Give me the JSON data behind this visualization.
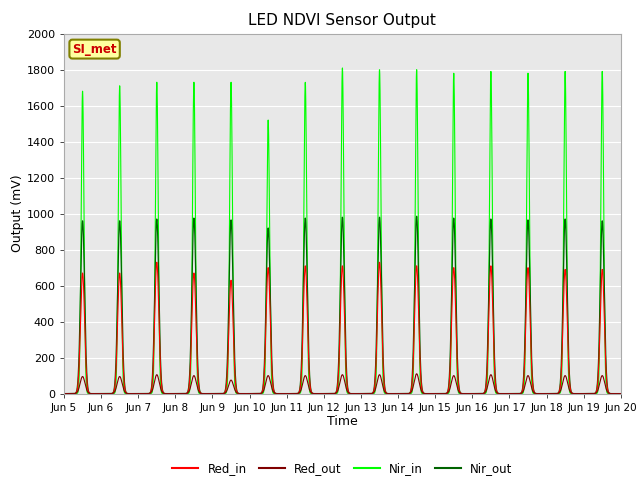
{
  "title": "LED NDVI Sensor Output",
  "xlabel": "Time",
  "ylabel": "Output (mV)",
  "ylim": [
    0,
    2000
  ],
  "yticks": [
    0,
    200,
    400,
    600,
    800,
    1000,
    1200,
    1400,
    1600,
    1800,
    2000
  ],
  "xtick_labels": [
    "Jun 5",
    "Jun 6",
    "Jun 7",
    "Jun 8",
    "Jun 9",
    "Jun 10",
    "Jun 11",
    "Jun 12",
    "Jun 13",
    "Jun 14",
    "Jun 15",
    "Jun 16",
    "Jun 17",
    "Jun 18",
    "Jun 19",
    "Jun 20"
  ],
  "colors": {
    "Red_in": "#ff0000",
    "Red_out": "#800000",
    "Nir_in": "#00ff00",
    "Nir_out": "#006400"
  },
  "background_color": "#e8e8e8",
  "annotation_text": "SI_met",
  "annotation_color": "#cc0000",
  "annotation_bg": "#ffffa0",
  "annotation_border": "#808000",
  "red_in_peaks": [
    670,
    670,
    730,
    670,
    630,
    700,
    710,
    710,
    730,
    710,
    700,
    710,
    700,
    690,
    690
  ],
  "red_out_peaks": [
    95,
    95,
    105,
    100,
    75,
    100,
    100,
    105,
    105,
    110,
    100,
    105,
    100,
    100,
    100
  ],
  "nir_in_peaks": [
    1680,
    1710,
    1730,
    1730,
    1730,
    1520,
    1730,
    1810,
    1800,
    1800,
    1780,
    1790,
    1780,
    1790,
    1790
  ],
  "nir_out_peaks": [
    960,
    960,
    970,
    975,
    965,
    920,
    975,
    980,
    980,
    985,
    975,
    970,
    965,
    970,
    960
  ]
}
